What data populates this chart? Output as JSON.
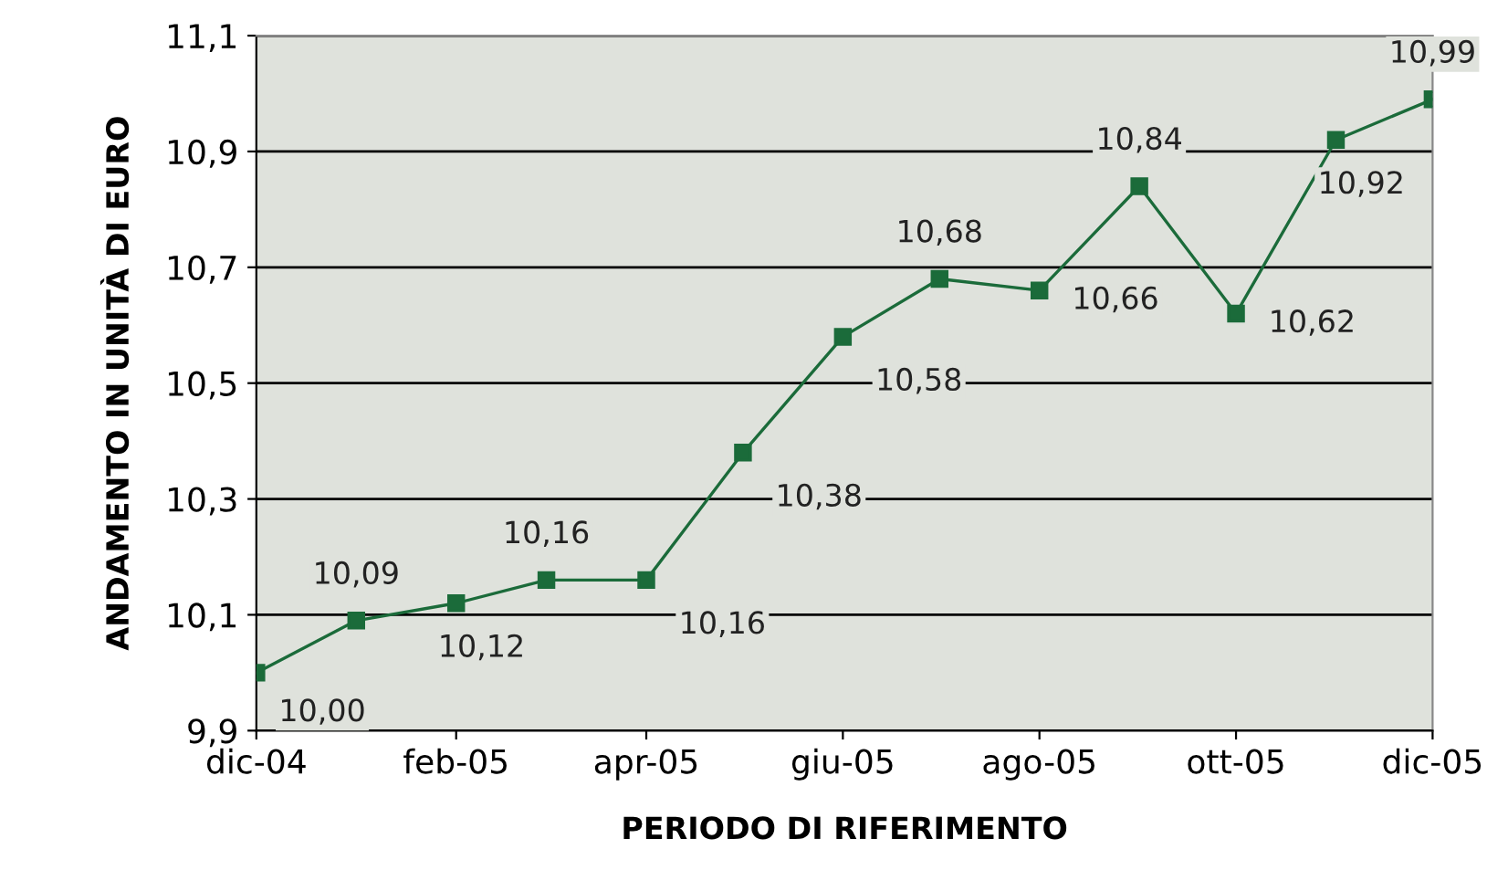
{
  "chart_data": {
    "type": "line",
    "xlabel": "PERIODO DI RIFERIMENTO",
    "ylabel": "ANDAMENTO IN UNITÀ DI EURO",
    "x": [
      "2004-12",
      "2005-01",
      "2005-02",
      "2005-03",
      "2005-04",
      "2005-05",
      "2005-06",
      "2005-07",
      "2005-08",
      "2005-09",
      "2005-10",
      "2005-11",
      "2005-12"
    ],
    "series": [
      {
        "color": "#1b6b3a",
        "values": [
          10.0,
          10.09,
          10.12,
          10.16,
          10.16,
          10.38,
          10.58,
          10.68,
          10.66,
          10.84,
          10.62,
          10.92,
          10.99
        ],
        "value_labels": [
          "10,00",
          "10,09",
          "10,12",
          "10,16",
          "10,16",
          "10,38",
          "10,58",
          "10,68",
          "10,66",
          "10,84",
          "10,62",
          "10,92",
          "10,99"
        ]
      }
    ],
    "xlim": [
      "2004-12",
      "2005-12"
    ],
    "xticks": [
      {
        "value": "2004-12",
        "label": "dic-04"
      },
      {
        "value": "2005-02",
        "label": "feb-05"
      },
      {
        "value": "2005-04",
        "label": "apr-05"
      },
      {
        "value": "2005-06",
        "label": "giu-05"
      },
      {
        "value": "2005-08",
        "label": "ago-05"
      },
      {
        "value": "2005-10",
        "label": "ott-05"
      },
      {
        "value": "2005-12",
        "label": "dic-05"
      }
    ],
    "ylim": [
      9.9,
      11.1
    ],
    "yticks": [
      {
        "value": 9.9,
        "label": "9,9"
      },
      {
        "value": 10.1,
        "label": "10,1"
      },
      {
        "value": 10.3,
        "label": "10,3"
      },
      {
        "value": 10.5,
        "label": "10,5"
      },
      {
        "value": 10.7,
        "label": "10,7"
      },
      {
        "value": 10.9,
        "label": "10,9"
      },
      {
        "value": 11.1,
        "label": "11,1"
      }
    ],
    "grid": "y",
    "marker": "square",
    "line_style": "solid"
  }
}
